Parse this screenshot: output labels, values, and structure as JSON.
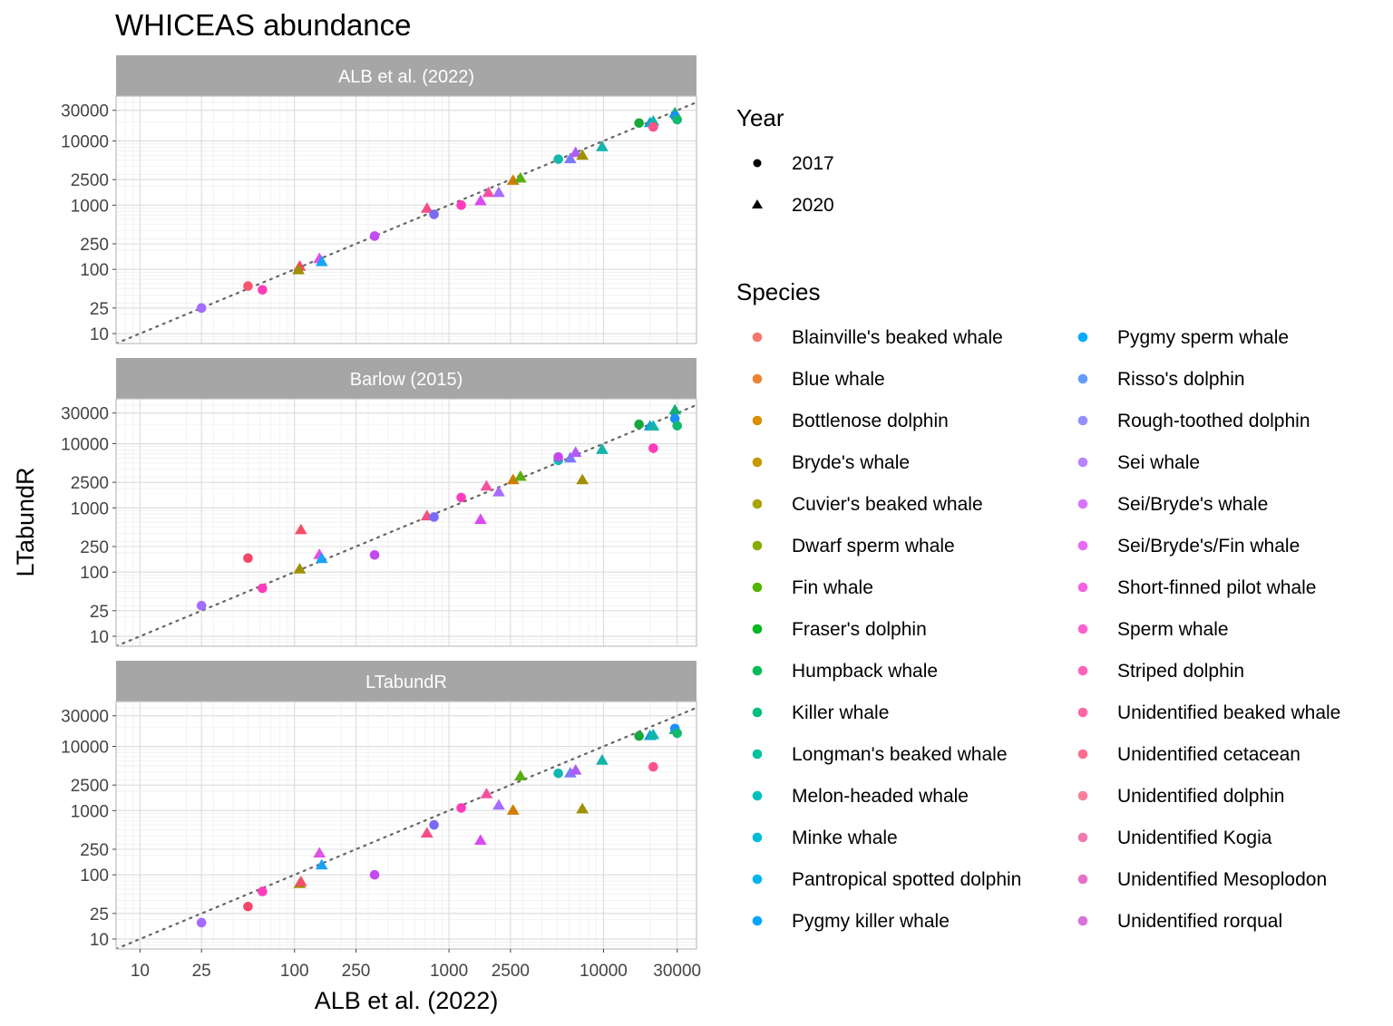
{
  "chart_data": {
    "type": "scatter",
    "title": "WHICEAS abundance",
    "xlabel": "ALB et al. (2022)",
    "ylabel": "LTabundR",
    "x_scale": "log",
    "y_scale": "log",
    "xlim": [
      7,
      40000
    ],
    "ylim": [
      7,
      50000
    ],
    "x_ticks": [
      10,
      25,
      100,
      250,
      1000,
      2500,
      10000,
      30000
    ],
    "y_ticks": [
      10,
      25,
      100,
      250,
      1000,
      2500,
      10000,
      30000
    ],
    "x_tick_labels": [
      "10",
      "25",
      "100",
      "250",
      "1000",
      "2500",
      "10000",
      "30000"
    ],
    "y_tick_labels": [
      "10",
      "25",
      "100",
      "250",
      "1000",
      "2500",
      "10000",
      "30000"
    ],
    "reference_line": "y = x (dotted)",
    "grid": true,
    "legend_placement": "right",
    "shape_legend": {
      "title": "Year",
      "items": [
        {
          "label": "2017",
          "shape": "circle"
        },
        {
          "label": "2020",
          "shape": "triangle"
        }
      ]
    },
    "species_legend": {
      "title": "Species",
      "items": [
        {
          "label": "Blainville's beaked whale",
          "color": "#F8766D"
        },
        {
          "label": "Blue whale",
          "color": "#EB8335"
        },
        {
          "label": "Bottlenose dolphin",
          "color": "#DA8F00"
        },
        {
          "label": "Bryde's whale",
          "color": "#C49A00"
        },
        {
          "label": "Cuvier's beaked whale",
          "color": "#A9A400"
        },
        {
          "label": "Dwarf sperm whale",
          "color": "#86AC00"
        },
        {
          "label": "Fin whale",
          "color": "#53B400"
        },
        {
          "label": "Fraser's dolphin",
          "color": "#00B81F"
        },
        {
          "label": "Humpback whale",
          "color": "#00BC56"
        },
        {
          "label": "Killer whale",
          "color": "#00BF7D"
        },
        {
          "label": "Longman's beaked whale",
          "color": "#00C19F"
        },
        {
          "label": "Melon-headed whale",
          "color": "#00C0BD"
        },
        {
          "label": "Minke whale",
          "color": "#00BDD7"
        },
        {
          "label": "Pantropical spotted dolphin",
          "color": "#00B5EE"
        },
        {
          "label": "Pygmy killer whale",
          "color": "#00A5FF"
        },
        {
          "label": "Pygmy sperm whale",
          "color": "#00ABFD"
        },
        {
          "label": "Risso's dolphin",
          "color": "#619CFF"
        },
        {
          "label": "Rough-toothed dolphin",
          "color": "#9590FF"
        },
        {
          "label": "Sei whale",
          "color": "#B983FF"
        },
        {
          "label": "Sei/Bryde's whale",
          "color": "#D575FE"
        },
        {
          "label": "Sei/Bryde's/Fin whale",
          "color": "#E76BF3"
        },
        {
          "label": "Short-finned pilot whale",
          "color": "#F564E3"
        },
        {
          "label": "Sperm whale",
          "color": "#FD61D1"
        },
        {
          "label": "Striped dolphin",
          "color": "#FF62BC"
        },
        {
          "label": "Unidentified beaked whale",
          "color": "#FF67A4"
        },
        {
          "label": "Unidentified cetacean",
          "color": "#FF6C91"
        },
        {
          "label": "Unidentified dolphin",
          "color": "#F77F9A"
        },
        {
          "label": "Unidentified Kogia",
          "color": "#EE7AB0"
        },
        {
          "label": "Unidentified Mesoplodon",
          "color": "#E572C6"
        },
        {
          "label": "Unidentified rorqual",
          "color": "#D972DB"
        }
      ]
    },
    "panels": [
      {
        "label": "ALB et al. (2022)",
        "points": [
          {
            "x": 25,
            "y": 25,
            "shape": "circle",
            "color": "#A66BFF"
          },
          {
            "x": 50,
            "y": 55,
            "shape": "circle",
            "color": "#F8566F"
          },
          {
            "x": 62,
            "y": 48,
            "shape": "circle",
            "color": "#FF3CBB"
          },
          {
            "x": 108,
            "y": 110,
            "shape": "triangle",
            "color": "#F5466A"
          },
          {
            "x": 106,
            "y": 97,
            "shape": "triangle",
            "color": "#A09000"
          },
          {
            "x": 145,
            "y": 145,
            "shape": "triangle",
            "color": "#E052E8"
          },
          {
            "x": 150,
            "y": 130,
            "shape": "triangle",
            "color": "#1AA3F5"
          },
          {
            "x": 330,
            "y": 330,
            "shape": "circle",
            "color": "#C24AF0"
          },
          {
            "x": 720,
            "y": 880,
            "shape": "triangle",
            "color": "#F54E84"
          },
          {
            "x": 800,
            "y": 720,
            "shape": "circle",
            "color": "#7A6BF5"
          },
          {
            "x": 1200,
            "y": 1000,
            "shape": "circle",
            "color": "#FF3CBB"
          },
          {
            "x": 1600,
            "y": 1150,
            "shape": "triangle",
            "color": "#D94AF0"
          },
          {
            "x": 1800,
            "y": 1550,
            "shape": "triangle",
            "color": "#F550A0"
          },
          {
            "x": 2100,
            "y": 1550,
            "shape": "triangle",
            "color": "#A66BFF"
          },
          {
            "x": 2600,
            "y": 2400,
            "shape": "triangle",
            "color": "#D27A00"
          },
          {
            "x": 2900,
            "y": 2600,
            "shape": "triangle",
            "color": "#5AAE14"
          },
          {
            "x": 5100,
            "y": 5200,
            "shape": "circle",
            "color": "#12B8B0"
          },
          {
            "x": 6100,
            "y": 5200,
            "shape": "triangle",
            "color": "#7A7BFF"
          },
          {
            "x": 6600,
            "y": 6500,
            "shape": "triangle",
            "color": "#B15BF5"
          },
          {
            "x": 7300,
            "y": 5900,
            "shape": "triangle",
            "color": "#A09000"
          },
          {
            "x": 9800,
            "y": 8000,
            "shape": "triangle",
            "color": "#14B5A8"
          },
          {
            "x": 17000,
            "y": 19000,
            "shape": "circle",
            "color": "#16A83A"
          },
          {
            "x": 20000,
            "y": 19000,
            "shape": "triangle",
            "color": "#0AA0E0"
          },
          {
            "x": 21000,
            "y": 20000,
            "shape": "triangle",
            "color": "#14B5A8"
          },
          {
            "x": 21000,
            "y": 16500,
            "shape": "circle",
            "color": "#FF5288"
          },
          {
            "x": 29000,
            "y": 27000,
            "shape": "triangle",
            "color": "#12B070"
          },
          {
            "x": 29000,
            "y": 24500,
            "shape": "circle",
            "color": "#1A8FFF"
          },
          {
            "x": 30000,
            "y": 21500,
            "shape": "circle",
            "color": "#14B86E"
          }
        ]
      },
      {
        "label": "Barlow (2015)",
        "points": [
          {
            "x": 25,
            "y": 30,
            "shape": "circle",
            "color": "#A66BFF"
          },
          {
            "x": 50,
            "y": 165,
            "shape": "circle",
            "color": "#F5466A"
          },
          {
            "x": 62,
            "y": 56,
            "shape": "circle",
            "color": "#FF3CBB"
          },
          {
            "x": 108,
            "y": 110,
            "shape": "triangle",
            "color": "#A09000"
          },
          {
            "x": 110,
            "y": 450,
            "shape": "triangle",
            "color": "#F54E6A"
          },
          {
            "x": 145,
            "y": 185,
            "shape": "triangle",
            "color": "#E052E8"
          },
          {
            "x": 150,
            "y": 160,
            "shape": "triangle",
            "color": "#1AA3F5"
          },
          {
            "x": 330,
            "y": 185,
            "shape": "circle",
            "color": "#C24AF0"
          },
          {
            "x": 720,
            "y": 740,
            "shape": "triangle",
            "color": "#F54E84"
          },
          {
            "x": 800,
            "y": 720,
            "shape": "circle",
            "color": "#7A6BF5"
          },
          {
            "x": 1200,
            "y": 1450,
            "shape": "circle",
            "color": "#FF3CBB"
          },
          {
            "x": 1600,
            "y": 650,
            "shape": "triangle",
            "color": "#D94AF0"
          },
          {
            "x": 1750,
            "y": 2150,
            "shape": "triangle",
            "color": "#F550A0"
          },
          {
            "x": 2100,
            "y": 1750,
            "shape": "triangle",
            "color": "#A66BFF"
          },
          {
            "x": 2600,
            "y": 2700,
            "shape": "triangle",
            "color": "#D27A00"
          },
          {
            "x": 2900,
            "y": 3050,
            "shape": "triangle",
            "color": "#5AAE14"
          },
          {
            "x": 5100,
            "y": 5500,
            "shape": "circle",
            "color": "#12B8B0"
          },
          {
            "x": 5100,
            "y": 6200,
            "shape": "circle",
            "color": "#C24AF0"
          },
          {
            "x": 6100,
            "y": 5900,
            "shape": "triangle",
            "color": "#7A7BFF"
          },
          {
            "x": 6600,
            "y": 7200,
            "shape": "triangle",
            "color": "#B15BF5"
          },
          {
            "x": 7300,
            "y": 2700,
            "shape": "triangle",
            "color": "#A09000"
          },
          {
            "x": 9800,
            "y": 8000,
            "shape": "triangle",
            "color": "#14B5A8"
          },
          {
            "x": 17000,
            "y": 20000,
            "shape": "circle",
            "color": "#16A83A"
          },
          {
            "x": 20000,
            "y": 18500,
            "shape": "triangle",
            "color": "#0AA0E0"
          },
          {
            "x": 21000,
            "y": 18500,
            "shape": "triangle",
            "color": "#14B5A8"
          },
          {
            "x": 21000,
            "y": 8500,
            "shape": "circle",
            "color": "#FF3CBB"
          },
          {
            "x": 29000,
            "y": 33000,
            "shape": "triangle",
            "color": "#12B070"
          },
          {
            "x": 29000,
            "y": 24500,
            "shape": "circle",
            "color": "#1A8FFF"
          },
          {
            "x": 30000,
            "y": 19000,
            "shape": "circle",
            "color": "#14B86E"
          }
        ]
      },
      {
        "label": "LTabundR",
        "points": [
          {
            "x": 25,
            "y": 18,
            "shape": "circle",
            "color": "#A66BFF"
          },
          {
            "x": 50,
            "y": 32,
            "shape": "circle",
            "color": "#F5466A"
          },
          {
            "x": 62,
            "y": 55,
            "shape": "circle",
            "color": "#FF3CBB"
          },
          {
            "x": 108,
            "y": 72,
            "shape": "triangle",
            "color": "#A09000"
          },
          {
            "x": 110,
            "y": 77,
            "shape": "triangle",
            "color": "#F54E6A"
          },
          {
            "x": 145,
            "y": 215,
            "shape": "triangle",
            "color": "#E052E8"
          },
          {
            "x": 150,
            "y": 140,
            "shape": "triangle",
            "color": "#1AA3F5"
          },
          {
            "x": 330,
            "y": 100,
            "shape": "circle",
            "color": "#C24AF0"
          },
          {
            "x": 720,
            "y": 440,
            "shape": "triangle",
            "color": "#F54E84"
          },
          {
            "x": 800,
            "y": 600,
            "shape": "circle",
            "color": "#7A6BF5"
          },
          {
            "x": 1200,
            "y": 1100,
            "shape": "circle",
            "color": "#FF3CBB"
          },
          {
            "x": 1600,
            "y": 340,
            "shape": "triangle",
            "color": "#D94AF0"
          },
          {
            "x": 1750,
            "y": 1800,
            "shape": "triangle",
            "color": "#F550A0"
          },
          {
            "x": 2100,
            "y": 1200,
            "shape": "triangle",
            "color": "#A66BFF"
          },
          {
            "x": 2600,
            "y": 1000,
            "shape": "triangle",
            "color": "#D27A00"
          },
          {
            "x": 2900,
            "y": 3400,
            "shape": "triangle",
            "color": "#5AAE14"
          },
          {
            "x": 5100,
            "y": 3800,
            "shape": "circle",
            "color": "#12B8B0"
          },
          {
            "x": 6100,
            "y": 3800,
            "shape": "triangle",
            "color": "#7A7BFF"
          },
          {
            "x": 6600,
            "y": 4200,
            "shape": "triangle",
            "color": "#B15BF5"
          },
          {
            "x": 7300,
            "y": 1050,
            "shape": "triangle",
            "color": "#A09000"
          },
          {
            "x": 9800,
            "y": 6000,
            "shape": "triangle",
            "color": "#14B5A8"
          },
          {
            "x": 17000,
            "y": 14500,
            "shape": "circle",
            "color": "#16A83A"
          },
          {
            "x": 20000,
            "y": 14500,
            "shape": "triangle",
            "color": "#0AA0E0"
          },
          {
            "x": 21000,
            "y": 15000,
            "shape": "triangle",
            "color": "#14B5A8"
          },
          {
            "x": 21000,
            "y": 4800,
            "shape": "circle",
            "color": "#FF5288"
          },
          {
            "x": 29000,
            "y": 18000,
            "shape": "triangle",
            "color": "#12B070"
          },
          {
            "x": 29000,
            "y": 19000,
            "shape": "circle",
            "color": "#1A8FFF"
          },
          {
            "x": 30000,
            "y": 16000,
            "shape": "circle",
            "color": "#14B86E"
          }
        ]
      }
    ]
  }
}
